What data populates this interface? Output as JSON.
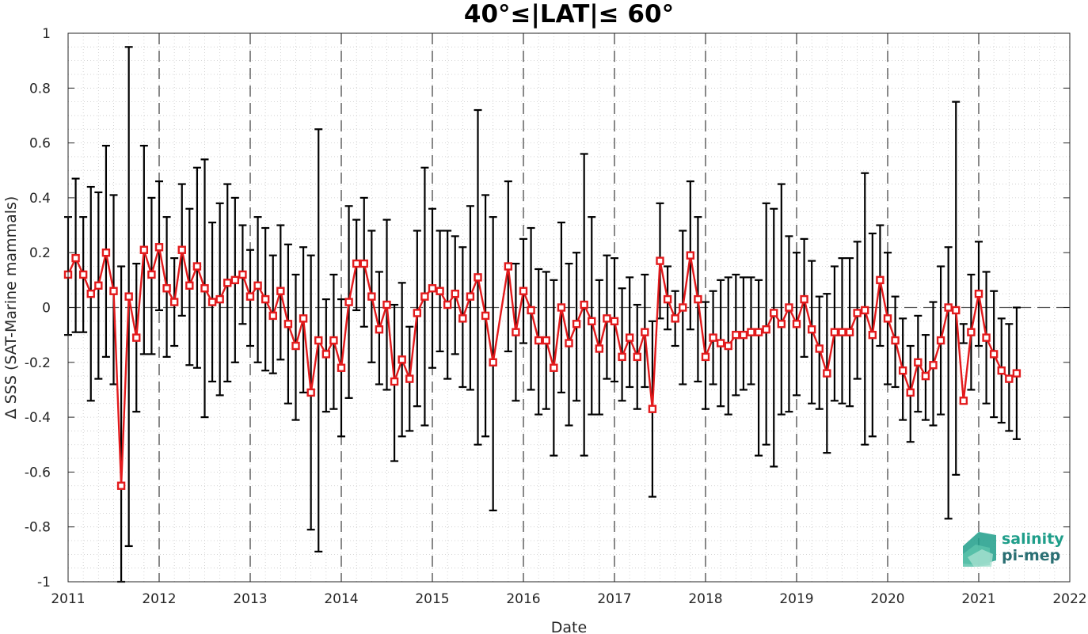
{
  "chart_data": {
    "type": "line",
    "title": "40°≤|LAT|≤ 60°",
    "xlabel": "Date",
    "ylabel": "Δ SSS (SAT-Marine mammals)",
    "xlim": [
      2011,
      2022
    ],
    "ylim": [
      -1,
      1
    ],
    "xticks": [
      "2011",
      "2012",
      "2013",
      "2014",
      "2015",
      "2016",
      "2017",
      "2018",
      "2019",
      "2020",
      "2021",
      "2022"
    ],
    "yticks": [
      "1",
      "0.8",
      "0.6",
      "0.4",
      "0.2",
      "0",
      "-0.2",
      "-0.4",
      "-0.6",
      "-0.8",
      "-1"
    ],
    "grid": "dotted minor",
    "year_separators": "dashed vertical at each Jan",
    "zero_line": "dashed",
    "colors": {
      "series": "#e31a1c",
      "errorbar": "#000000",
      "logo_teal": "#1f9e8a",
      "logo_dark": "#2a6f73"
    },
    "series": [
      {
        "x": [
          "2011-01",
          "2011-02",
          "2011-03",
          "2011-04",
          "2011-05",
          "2011-06",
          "2011-07",
          "2011-08",
          "2011-09",
          "2011-10",
          "2011-11",
          "2011-12",
          "2012-01",
          "2012-02",
          "2012-03",
          "2012-04",
          "2012-05",
          "2012-06",
          "2012-07",
          "2012-08",
          "2012-09",
          "2012-10",
          "2012-11",
          "2012-12",
          "2013-01",
          "2013-02",
          "2013-03",
          "2013-04",
          "2013-05",
          "2013-06",
          "2013-07",
          "2013-08",
          "2013-09",
          "2013-10",
          "2013-11",
          "2013-12",
          "2014-01",
          "2014-02",
          "2014-03",
          "2014-04",
          "2014-05",
          "2014-06",
          "2014-07",
          "2014-08",
          "2014-09",
          "2014-10",
          "2014-11",
          "2014-12",
          "2015-01",
          "2015-02",
          "2015-03",
          "2015-04",
          "2015-05",
          "2015-06",
          "2015-07",
          "2015-08",
          "2015-09",
          "2015-11",
          "2015-12",
          "2016-01",
          "2016-02",
          "2016-03",
          "2016-04",
          "2016-05",
          "2016-06",
          "2016-07",
          "2016-08",
          "2016-09",
          "2016-10",
          "2016-11",
          "2016-12",
          "2017-01",
          "2017-02",
          "2017-03",
          "2017-04",
          "2017-05",
          "2017-06",
          "2017-07",
          "2017-08",
          "2017-09",
          "2017-10",
          "2017-11",
          "2017-12",
          "2018-01",
          "2018-02",
          "2018-03",
          "2018-04",
          "2018-05",
          "2018-06",
          "2018-07",
          "2018-08",
          "2018-09",
          "2018-10",
          "2018-11",
          "2018-12",
          "2019-01",
          "2019-02",
          "2019-03",
          "2019-04",
          "2019-05",
          "2019-06",
          "2019-07",
          "2019-08",
          "2019-09",
          "2019-10",
          "2019-11",
          "2019-12",
          "2020-01",
          "2020-02",
          "2020-03",
          "2020-04",
          "2020-05",
          "2020-06",
          "2020-07",
          "2020-08",
          "2020-09",
          "2020-10",
          "2020-11",
          "2020-12",
          "2021-01",
          "2021-02",
          "2021-03",
          "2021-04",
          "2021-05",
          "2021-06"
        ],
        "y": [
          0.12,
          0.18,
          0.12,
          0.05,
          0.08,
          0.2,
          0.06,
          -0.65,
          0.04,
          -0.11,
          0.21,
          0.12,
          0.22,
          0.07,
          0.02,
          0.21,
          0.08,
          0.15,
          0.07,
          0.02,
          0.03,
          0.09,
          0.1,
          0.12,
          0.04,
          0.08,
          0.03,
          -0.03,
          0.06,
          -0.06,
          -0.14,
          -0.04,
          -0.31,
          -0.12,
          -0.17,
          -0.12,
          -0.22,
          0.02,
          0.16,
          0.16,
          0.04,
          -0.08,
          0.01,
          -0.27,
          -0.19,
          -0.26,
          -0.02,
          0.04,
          0.07,
          0.06,
          0.01,
          0.05,
          -0.04,
          0.04,
          0.11,
          -0.03,
          -0.2,
          0.15,
          -0.09,
          0.06,
          -0.01,
          -0.12,
          -0.12,
          -0.22,
          0.0,
          -0.13,
          -0.06,
          0.01,
          -0.05,
          -0.15,
          -0.04,
          -0.05,
          -0.18,
          -0.11,
          -0.18,
          -0.09,
          -0.37,
          0.17,
          0.03,
          -0.04,
          0.0,
          0.19,
          0.03,
          -0.18,
          -0.11,
          -0.13,
          -0.14,
          -0.1,
          -0.1,
          -0.09,
          -0.09,
          -0.08,
          -0.02,
          -0.06,
          0.0,
          -0.06,
          0.03,
          -0.08,
          -0.15,
          -0.24,
          -0.09,
          -0.09,
          -0.09,
          -0.02,
          -0.01,
          -0.1,
          0.1,
          -0.04,
          -0.12,
          -0.23,
          -0.31,
          -0.2,
          -0.25,
          -0.21,
          -0.12,
          0.0,
          -0.01,
          -0.34,
          -0.09,
          0.05,
          -0.11,
          -0.17,
          -0.23,
          -0.26,
          -0.24
        ],
        "err_upper": [
          0.33,
          0.47,
          0.33,
          0.44,
          0.42,
          0.59,
          0.41,
          0.15,
          0.95,
          0.16,
          0.59,
          0.4,
          0.46,
          0.33,
          0.18,
          0.45,
          0.36,
          0.51,
          0.54,
          0.31,
          0.38,
          0.45,
          0.4,
          0.3,
          0.21,
          0.33,
          0.29,
          0.19,
          0.3,
          0.23,
          0.12,
          0.22,
          0.19,
          0.65,
          0.03,
          0.12,
          0.03,
          0.37,
          0.32,
          0.4,
          0.28,
          0.13,
          0.32,
          0.01,
          0.09,
          -0.07,
          0.28,
          0.51,
          0.36,
          0.28,
          0.28,
          0.26,
          0.22,
          0.37,
          0.72,
          0.41,
          0.33,
          0.46,
          0.16,
          0.25,
          0.29,
          0.14,
          0.13,
          0.1,
          0.31,
          0.16,
          0.2,
          0.56,
          0.33,
          0.1,
          0.19,
          0.18,
          0.07,
          0.11,
          0.01,
          0.12,
          -0.05,
          0.38,
          0.15,
          0.06,
          0.28,
          0.46,
          0.33,
          0.02,
          0.06,
          0.1,
          0.11,
          0.12,
          0.11,
          0.11,
          0.1,
          0.38,
          0.36,
          0.45,
          0.26,
          0.2,
          0.25,
          0.17,
          0.04,
          0.05,
          0.15,
          0.18,
          0.18,
          0.24,
          0.49,
          0.27,
          0.3,
          0.2,
          0.04,
          -0.04,
          -0.14,
          -0.03,
          -0.1,
          0.02,
          0.15,
          0.22,
          0.75,
          -0.06,
          0.12,
          0.24,
          0.13,
          0.06,
          -0.04,
          -0.06,
          0.0
        ],
        "err_lower": [
          -0.1,
          -0.09,
          -0.09,
          -0.34,
          -0.26,
          -0.18,
          -0.28,
          -1.0,
          -0.87,
          -0.38,
          -0.17,
          -0.17,
          -0.01,
          -0.18,
          -0.14,
          -0.03,
          -0.21,
          -0.22,
          -0.4,
          -0.27,
          -0.32,
          -0.27,
          -0.2,
          -0.06,
          -0.14,
          -0.2,
          -0.23,
          -0.24,
          -0.19,
          -0.35,
          -0.41,
          -0.31,
          -0.81,
          -0.89,
          -0.38,
          -0.37,
          -0.47,
          -0.33,
          -0.01,
          -0.07,
          -0.2,
          -0.28,
          -0.3,
          -0.56,
          -0.47,
          -0.45,
          -0.36,
          -0.43,
          -0.22,
          -0.16,
          -0.26,
          -0.17,
          -0.29,
          -0.3,
          -0.5,
          -0.47,
          -0.74,
          -0.16,
          -0.34,
          -0.13,
          -0.3,
          -0.39,
          -0.37,
          -0.54,
          -0.31,
          -0.43,
          -0.34,
          -0.54,
          -0.39,
          -0.39,
          -0.26,
          -0.27,
          -0.34,
          -0.29,
          -0.37,
          -0.29,
          -0.69,
          -0.04,
          -0.08,
          -0.14,
          -0.28,
          -0.08,
          -0.27,
          -0.37,
          -0.28,
          -0.36,
          -0.39,
          -0.32,
          -0.3,
          -0.28,
          -0.54,
          -0.5,
          -0.58,
          -0.39,
          -0.38,
          -0.32,
          -0.18,
          -0.35,
          -0.37,
          -0.53,
          -0.34,
          -0.35,
          -0.36,
          -0.26,
          -0.5,
          -0.47,
          -0.14,
          -0.28,
          -0.29,
          -0.41,
          -0.49,
          -0.38,
          -0.41,
          -0.43,
          -0.39,
          -0.77,
          -0.61,
          -0.13,
          -0.3,
          -0.14,
          -0.35,
          -0.4,
          -0.42,
          -0.45,
          -0.48
        ]
      }
    ]
  },
  "logo": {
    "line1": "salinity",
    "line2": "pi-mep"
  }
}
